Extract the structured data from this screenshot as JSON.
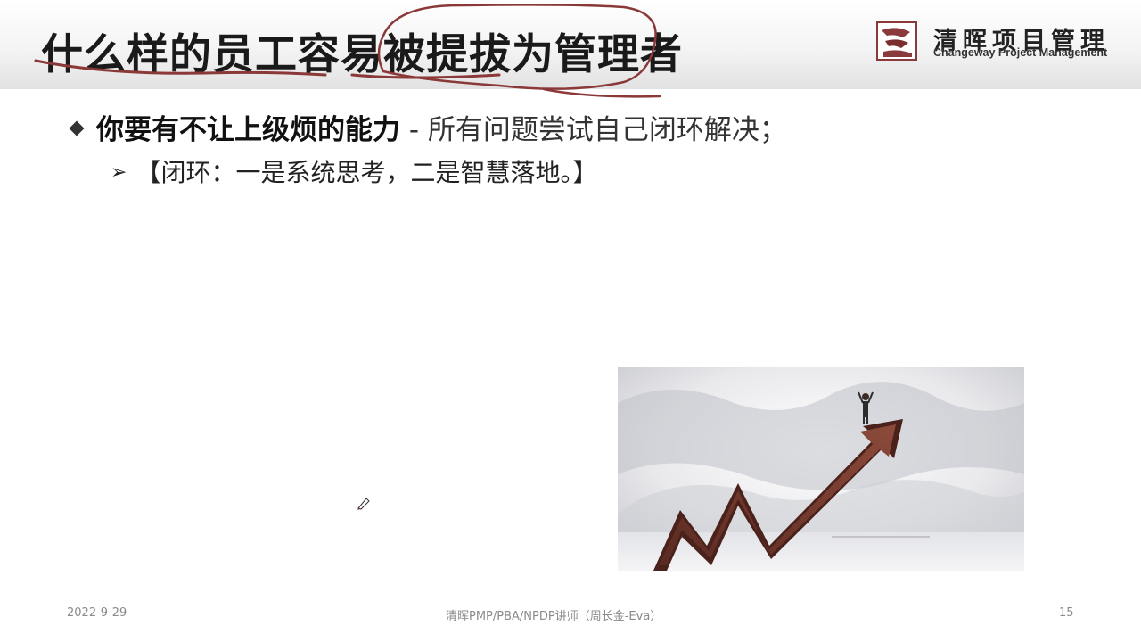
{
  "title": "什么样的员工容易被提拔为管理者",
  "logo": {
    "name_cn": "清晖项目管理",
    "name_en": "Changeway Project Management",
    "icon": "changeway-logo-icon"
  },
  "bullets": {
    "level1": {
      "bold_text": "你要有不让上级烦的能力",
      "normal_text": " - 所有问题尝试自己闭环解决；"
    },
    "level2": {
      "text": "【闭环：一是系统思考，二是智慧落地。】"
    }
  },
  "image": {
    "description_icon": "rising-arrow-man-photo"
  },
  "footer": {
    "date": "2022-9-29",
    "center": "清晖PMP/PBA/NPDP讲师（周长金-Eva）",
    "page": "15"
  },
  "colors": {
    "annotation": "#8a3838",
    "arrow": "#7e3a2c",
    "title_band_shadow": "#e2e2e2"
  }
}
